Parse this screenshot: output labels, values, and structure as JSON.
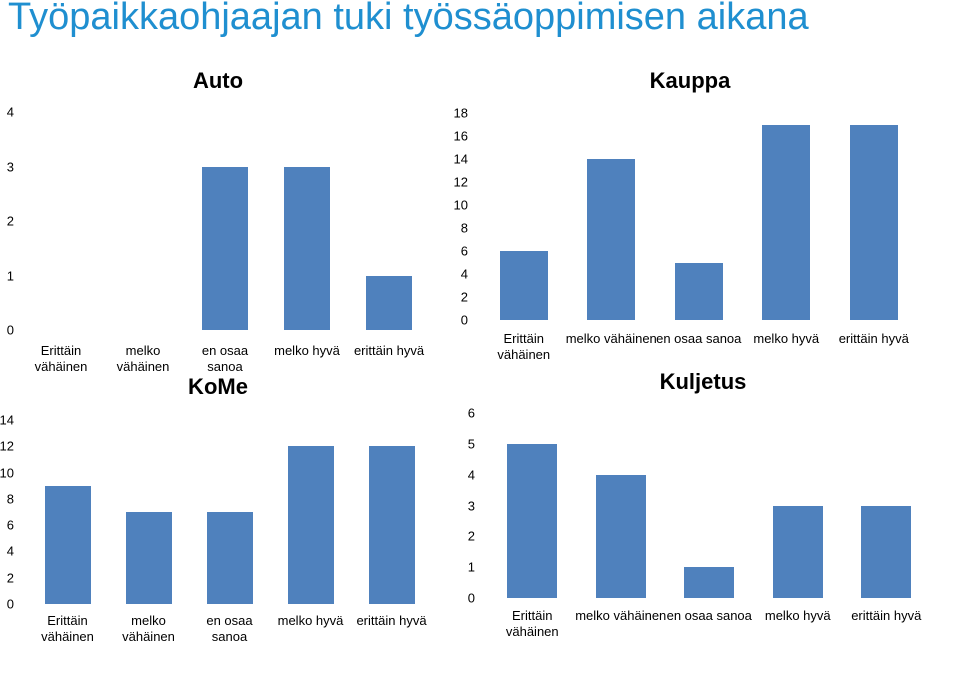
{
  "title": "Työpaikkaohjaajan tuki työssäoppimisen aikana",
  "chart_data": [
    {
      "type": "bar",
      "title": "Auto",
      "categories": [
        "Erittäin vähäinen",
        "melko vähäinen",
        "en osaa sanoa",
        "melko hyvä",
        "erittäin hyvä"
      ],
      "values": [
        0,
        0,
        3,
        3,
        1
      ],
      "color": "#4f81bd",
      "ylim": [
        0,
        4
      ],
      "yticks": [
        0,
        1,
        2,
        3,
        4
      ]
    },
    {
      "type": "bar",
      "title": "Kauppa",
      "categories": [
        "Erittäin vähäinen",
        "melko vähäinen",
        "en osaa sanoa",
        "melko hyvä",
        "erittäin hyvä"
      ],
      "values": [
        6,
        14,
        5,
        17,
        17
      ],
      "color": "#4f81bd",
      "ylim": [
        0,
        18
      ],
      "yticks": [
        0,
        2,
        4,
        6,
        8,
        10,
        12,
        14,
        16,
        18
      ]
    },
    {
      "type": "bar",
      "title": "KoMe",
      "categories": [
        "Erittäin vähäinen",
        "melko vähäinen",
        "en osaa sanoa",
        "melko hyvä",
        "erittäin hyvä"
      ],
      "values": [
        9,
        7,
        7,
        12,
        12
      ],
      "color": "#4f81bd",
      "ylim": [
        0,
        14
      ],
      "yticks": [
        0,
        2,
        4,
        6,
        8,
        10,
        12,
        14
      ]
    },
    {
      "type": "bar",
      "title": "Kuljetus",
      "categories": [
        "Erittäin vähäinen",
        "melko vähäinen",
        "en osaa sanoa",
        "melko hyvä",
        "erittäin hyvä"
      ],
      "values": [
        5,
        4,
        1,
        3,
        3
      ],
      "color": "#4f81bd",
      "ylim": [
        0,
        6
      ],
      "yticks": [
        0,
        1,
        2,
        3,
        4,
        5,
        6
      ]
    }
  ]
}
